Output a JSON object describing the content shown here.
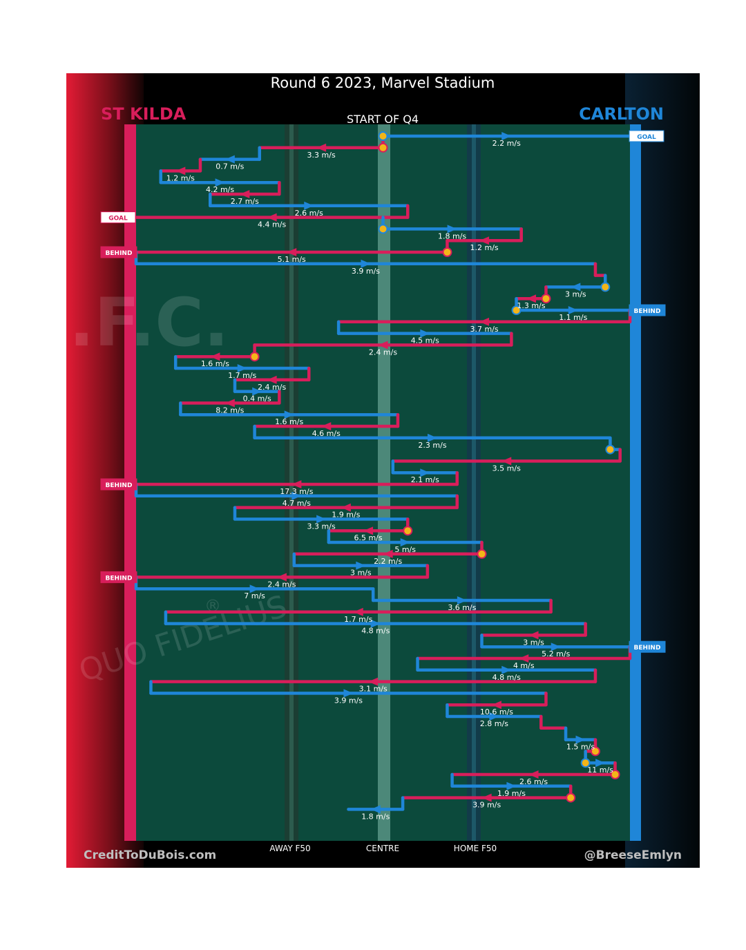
{
  "chart_data": {
    "type": "line",
    "title": "Round 6 2023, Marvel Stadium",
    "subtitle": "START OF Q4",
    "teams": [
      {
        "name": "ST KILDA",
        "color": "#d81e5b",
        "attacks": "left"
      },
      {
        "name": "CARLTON",
        "color": "#1f86d8",
        "attacks": "right"
      }
    ],
    "x_tick_labels": [
      "AWAY F50",
      "CENTRE",
      "HOME F50"
    ],
    "credit_left": "CreditToDuBois.com",
    "credit_right": "@BreeseEmlyn",
    "background_watermark": [
      ".F.C.",
      "QUO FIDELIUS",
      "®"
    ],
    "colors": {
      "st_kilda": "#d81e5b",
      "carlton": "#1f86d8",
      "ground": "#0c4a3c",
      "ball_up": "#f3b519"
    },
    "x_scale": {
      "left_goal": 0,
      "centre": 50,
      "right_goal": 100
    },
    "chains": [
      {
        "team": "carlton",
        "from": 50,
        "to": 100,
        "speed": "2.2 m/s",
        "outcome": "GOAL",
        "start_marker": true
      },
      {
        "team": "st_kilda",
        "from": 50,
        "to": 25,
        "speed": "3.3 m/s",
        "end_marker": true,
        "start_marker": true
      },
      {
        "team": "carlton",
        "from": 25,
        "to": 13,
        "speed": "0.7 m/s"
      },
      {
        "team": "st_kilda",
        "from": 13,
        "to": 5,
        "speed": "1.2 m/s"
      },
      {
        "team": "carlton",
        "from": 5,
        "to": 29,
        "speed": "4.2 m/s"
      },
      {
        "team": "st_kilda",
        "from": 29,
        "to": 15,
        "speed": "2.7 m/s"
      },
      {
        "team": "carlton",
        "from": 15,
        "to": 55,
        "speed": "2.6 m/s"
      },
      {
        "team": "st_kilda",
        "from": 55,
        "to": 0,
        "speed": "4.4 m/s",
        "outcome": "GOAL"
      },
      {
        "team": "carlton",
        "from": 50,
        "to": 78,
        "speed": "1.8 m/s",
        "start_marker": true
      },
      {
        "team": "st_kilda",
        "from": 78,
        "to": 63,
        "speed": "1.2 m/s"
      },
      {
        "team": "st_kilda",
        "from": 63,
        "to": 0,
        "speed": "5.1 m/s",
        "outcome": "BEHIND",
        "start_marker": true
      },
      {
        "team": "carlton",
        "from": 0,
        "to": 93,
        "speed": "3.9 m/s"
      },
      {
        "team": "st_kilda",
        "from": 93,
        "to": 95,
        "speed": ""
      },
      {
        "team": "carlton",
        "from": 95,
        "to": 83,
        "speed": "3 m/s",
        "start_marker": true
      },
      {
        "team": "st_kilda",
        "from": 83,
        "to": 77,
        "speed": "1.3 m/s",
        "start_marker": true
      },
      {
        "team": "carlton",
        "from": 77,
        "to": 100,
        "speed": "1.1 m/s",
        "outcome": "BEHIND",
        "start_marker": true
      },
      {
        "team": "st_kilda",
        "from": 100,
        "to": 41,
        "speed": "3.7 m/s"
      },
      {
        "team": "carlton",
        "from": 41,
        "to": 76,
        "speed": "4.5 m/s"
      },
      {
        "team": "st_kilda",
        "from": 76,
        "to": 24,
        "speed": "2.4 m/s"
      },
      {
        "team": "st_kilda",
        "from": 24,
        "to": 8,
        "speed": "1.6 m/s",
        "start_marker": true
      },
      {
        "team": "carlton",
        "from": 8,
        "to": 35,
        "speed": "1.7 m/s"
      },
      {
        "team": "st_kilda",
        "from": 35,
        "to": 20,
        "speed": "2.4 m/s"
      },
      {
        "team": "carlton",
        "from": 20,
        "to": 29,
        "speed": "0.4 m/s"
      },
      {
        "team": "st_kilda",
        "from": 29,
        "to": 9,
        "speed": "8.2 m/s"
      },
      {
        "team": "carlton",
        "from": 9,
        "to": 53,
        "speed": "1.6 m/s"
      },
      {
        "team": "st_kilda",
        "from": 53,
        "to": 24,
        "speed": "4.6 m/s"
      },
      {
        "team": "carlton",
        "from": 24,
        "to": 96,
        "speed": "2.3 m/s"
      },
      {
        "team": "carlton",
        "from": 96,
        "to": 98,
        "speed": "",
        "start_marker": true
      },
      {
        "team": "st_kilda",
        "from": 98,
        "to": 52,
        "speed": "3.5 m/s"
      },
      {
        "team": "carlton",
        "from": 52,
        "to": 65,
        "speed": "2.1 m/s"
      },
      {
        "team": "st_kilda",
        "from": 65,
        "to": 0,
        "speed": "17.3 m/s",
        "outcome": "BEHIND"
      },
      {
        "team": "carlton",
        "from": 0,
        "to": 65,
        "speed": "4.7 m/s"
      },
      {
        "team": "st_kilda",
        "from": 65,
        "to": 20,
        "speed": "1.9 m/s"
      },
      {
        "team": "carlton",
        "from": 20,
        "to": 55,
        "speed": "3.3 m/s"
      },
      {
        "team": "st_kilda",
        "from": 55,
        "to": 39,
        "speed": "6.5 m/s",
        "start_marker": true
      },
      {
        "team": "carlton",
        "from": 39,
        "to": 70,
        "speed": "5 m/s"
      },
      {
        "team": "st_kilda",
        "from": 70,
        "to": 32,
        "speed": "2.2 m/s",
        "start_marker": true
      },
      {
        "team": "carlton",
        "from": 32,
        "to": 59,
        "speed": "3 m/s"
      },
      {
        "team": "st_kilda",
        "from": 59,
        "to": 0,
        "speed": "2.4 m/s",
        "outcome": "BEHIND"
      },
      {
        "team": "carlton",
        "from": 0,
        "to": 48,
        "speed": "7 m/s"
      },
      {
        "team": "carlton",
        "from": 48,
        "to": 84,
        "speed": "3.6 m/s"
      },
      {
        "team": "st_kilda",
        "from": 84,
        "to": 6,
        "speed": "1.7 m/s"
      },
      {
        "team": "carlton",
        "from": 6,
        "to": 91,
        "speed": "4.8 m/s"
      },
      {
        "team": "st_kilda",
        "from": 91,
        "to": 70,
        "speed": "3 m/s"
      },
      {
        "team": "carlton",
        "from": 70,
        "to": 100,
        "speed": "5.2 m/s",
        "outcome": "BEHIND"
      },
      {
        "team": "st_kilda",
        "from": 100,
        "to": 57,
        "speed": "4 m/s"
      },
      {
        "team": "carlton",
        "from": 57,
        "to": 93,
        "speed": "4.8 m/s"
      },
      {
        "team": "st_kilda",
        "from": 93,
        "to": 3,
        "speed": "3.1 m/s"
      },
      {
        "team": "carlton",
        "from": 3,
        "to": 83,
        "speed": "3.9 m/s"
      },
      {
        "team": "st_kilda",
        "from": 83,
        "to": 63,
        "speed": "10.6 m/s"
      },
      {
        "team": "carlton",
        "from": 63,
        "to": 82,
        "speed": "2.8 m/s"
      },
      {
        "team": "st_kilda",
        "from": 82,
        "to": 87,
        "speed": ""
      },
      {
        "team": "carlton",
        "from": 87,
        "to": 93,
        "speed": "1.5 m/s"
      },
      {
        "team": "st_kilda",
        "from": 93,
        "to": 91,
        "speed": "",
        "start_marker": true
      },
      {
        "team": "carlton",
        "from": 91,
        "to": 97,
        "speed": "11 m/s",
        "start_marker": true
      },
      {
        "team": "st_kilda",
        "from": 97,
        "to": 64,
        "speed": "2.6 m/s",
        "start_marker": true
      },
      {
        "team": "carlton",
        "from": 64,
        "to": 88,
        "speed": "1.9 m/s"
      },
      {
        "team": "st_kilda",
        "from": 88,
        "to": 54,
        "speed": "3.9 m/s",
        "start_marker": true
      },
      {
        "team": "carlton",
        "from": 54,
        "to": 43,
        "speed": "1.8 m/s"
      }
    ]
  }
}
